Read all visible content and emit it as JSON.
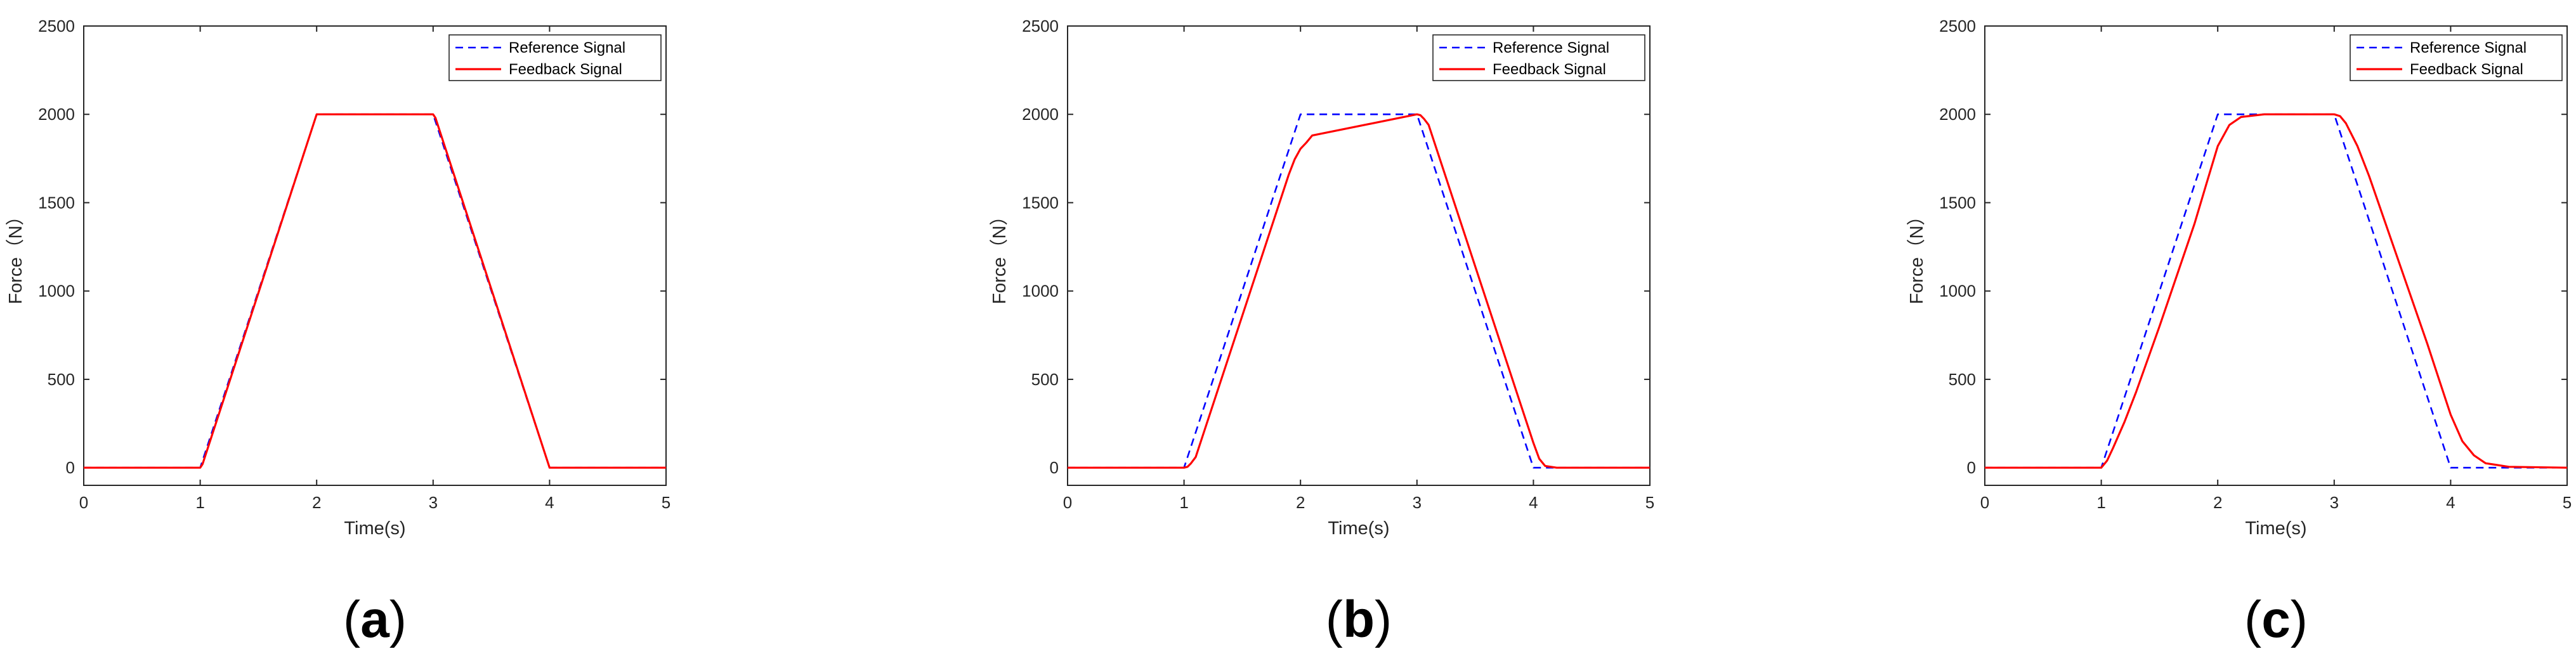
{
  "chart_data": [
    {
      "type": "line",
      "caption": "a",
      "xlabel": "Time(s)",
      "ylabel": "Force（N）",
      "xlim": [
        0,
        5
      ],
      "ylim": [
        -100,
        2500
      ],
      "xticks": [
        0,
        1,
        2,
        3,
        4,
        5
      ],
      "yticks": [
        0,
        500,
        1000,
        1500,
        2000,
        2500
      ],
      "grid": false,
      "legend_position": "top-right",
      "series": [
        {
          "name": "Reference Signal",
          "color": "#0000ff",
          "style": "dashed",
          "x": [
            0,
            1,
            2,
            3,
            4,
            5
          ],
          "y": [
            0,
            0,
            2000,
            2000,
            0,
            0
          ]
        },
        {
          "name": "Feedback Signal",
          "color": "#ff0000",
          "style": "solid",
          "x": [
            0,
            1,
            1.02,
            2,
            3,
            3.02,
            4,
            5
          ],
          "y": [
            0,
            0,
            20,
            2000,
            2000,
            1980,
            0,
            0
          ]
        }
      ]
    },
    {
      "type": "line",
      "caption": "b",
      "xlabel": "Time(s)",
      "ylabel": "Force（N）",
      "xlim": [
        0,
        5
      ],
      "ylim": [
        -100,
        2500
      ],
      "xticks": [
        0,
        1,
        2,
        3,
        4,
        5
      ],
      "yticks": [
        0,
        500,
        1000,
        1500,
        2000,
        2500
      ],
      "grid": false,
      "legend_position": "top-right",
      "series": [
        {
          "name": "Reference Signal",
          "color": "#0000ff",
          "style": "dashed",
          "x": [
            0,
            1,
            2,
            3,
            4,
            5
          ],
          "y": [
            0,
            0,
            2000,
            2000,
            0,
            0
          ]
        },
        {
          "name": "Feedback Signal",
          "color": "#ff0000",
          "style": "solid",
          "x": [
            0,
            1,
            1.03,
            1.06,
            1.1,
            1.5,
            1.9,
            1.95,
            2,
            2.05,
            2.1,
            3,
            3.03,
            3.06,
            3.1,
            3.5,
            3.9,
            4.0,
            4.05,
            4.1,
            4.2,
            5
          ],
          "y": [
            0,
            0,
            5,
            25,
            60,
            860,
            1660,
            1745,
            1805,
            1840,
            1880,
            2000,
            1995,
            1975,
            1940,
            1140,
            340,
            140,
            50,
            10,
            0,
            0
          ]
        }
      ]
    },
    {
      "type": "line",
      "caption": "c",
      "xlabel": "Time(s)",
      "ylabel": "Force（N）",
      "xlim": [
        0,
        5
      ],
      "ylim": [
        -100,
        2500
      ],
      "xticks": [
        0,
        1,
        2,
        3,
        4,
        5
      ],
      "yticks": [
        0,
        500,
        1000,
        1500,
        2000,
        2500
      ],
      "grid": false,
      "legend_position": "top-right",
      "series": [
        {
          "name": "Reference Signal",
          "color": "#0000ff",
          "style": "dashed",
          "x": [
            0,
            1,
            2,
            3,
            4,
            5
          ],
          "y": [
            0,
            0,
            2000,
            2000,
            0,
            0
          ]
        },
        {
          "name": "Feedback Signal",
          "color": "#ff0000",
          "style": "solid",
          "x": [
            0,
            1,
            1.05,
            1.1,
            1.2,
            1.3,
            1.5,
            1.8,
            1.9,
            2.0,
            2.1,
            2.2,
            2.4,
            3.0,
            3.05,
            3.1,
            3.2,
            3.3,
            3.5,
            3.8,
            3.9,
            4.0,
            4.1,
            4.2,
            4.3,
            4.5,
            5
          ],
          "y": [
            0,
            0,
            40,
            110,
            260,
            430,
            800,
            1380,
            1600,
            1820,
            1940,
            1985,
            2000,
            2000,
            1990,
            1950,
            1820,
            1650,
            1270,
            700,
            500,
            300,
            150,
            70,
            25,
            5,
            0
          ]
        }
      ]
    }
  ]
}
